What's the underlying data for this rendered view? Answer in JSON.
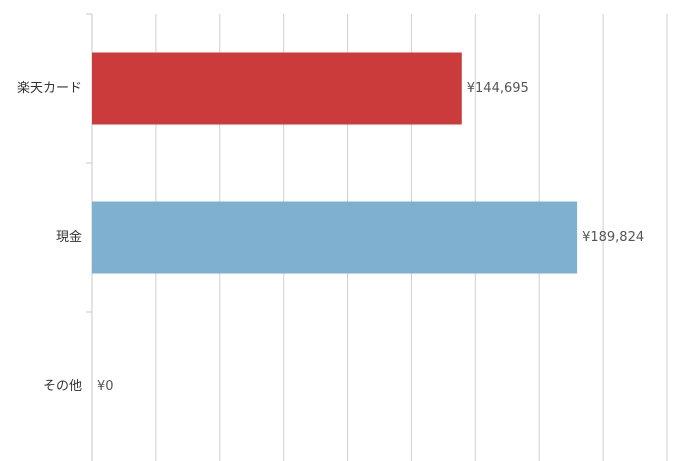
{
  "chart_data": {
    "type": "bar",
    "orientation": "horizontal",
    "categories": [
      "楽天カード",
      "現金",
      "その他"
    ],
    "values": [
      144695,
      189824,
      0
    ],
    "value_labels": [
      "¥144,695",
      "¥189,824",
      "¥0"
    ],
    "colors": [
      "#cc3b3b",
      "#7fb0cf",
      "#9e9e9e"
    ],
    "xlim": [
      0,
      225000
    ],
    "xticks": [
      0,
      25000,
      50000,
      75000,
      100000,
      125000,
      150000,
      175000,
      200000,
      225000
    ],
    "grid": true
  }
}
